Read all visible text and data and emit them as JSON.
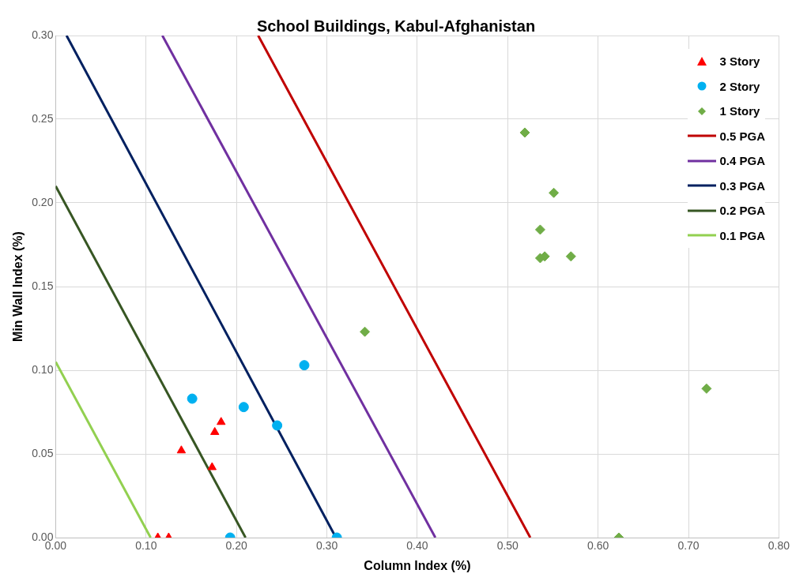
{
  "chart_data": {
    "type": "scatter",
    "title": "School Buildings, Kabul-Afghanistan",
    "xlabel": "Column Index (%)",
    "ylabel": "Min Wall Index (%)",
    "xlim": [
      0,
      0.8
    ],
    "ylim": [
      0,
      0.3
    ],
    "xticks": [
      {
        "value": 0,
        "label": "0.00"
      },
      {
        "value": 0.1,
        "label": "0.10"
      },
      {
        "value": 0.2,
        "label": "0.20"
      },
      {
        "value": 0.3,
        "label": "0.30"
      },
      {
        "value": 0.4,
        "label": "0.40"
      },
      {
        "value": 0.5,
        "label": "0.50"
      },
      {
        "value": 0.6,
        "label": "0.60"
      },
      {
        "value": 0.7,
        "label": "0.70"
      },
      {
        "value": 0.8,
        "label": "0.80"
      }
    ],
    "yticks": [
      {
        "value": 0,
        "label": "0.00"
      },
      {
        "value": 0.05,
        "label": "0.05"
      },
      {
        "value": 0.1,
        "label": "0.10"
      },
      {
        "value": 0.15,
        "label": "0.15"
      },
      {
        "value": 0.2,
        "label": "0.20"
      },
      {
        "value": 0.25,
        "label": "0.25"
      },
      {
        "value": 0.3,
        "label": "0.30"
      }
    ],
    "grid": true,
    "legend": "top right",
    "series": [
      {
        "name": "3 Story",
        "marker": "triangle",
        "color": "#ff0000",
        "x": [
          0.113,
          0.125,
          0.139,
          0.173,
          0.176,
          0.183
        ],
        "values": [
          0,
          0,
          0.052,
          0.042,
          0.063,
          0.069
        ]
      },
      {
        "name": "2 Story",
        "marker": "circle",
        "color": "#00b0f0",
        "x": [
          0.151,
          0.208,
          0.245,
          0.275,
          0.193,
          0.311
        ],
        "values": [
          0.083,
          0.078,
          0.067,
          0.103,
          0,
          0
        ]
      },
      {
        "name": "1 Story",
        "marker": "diamond",
        "color": "#70ad47",
        "x": [
          0.519,
          0.551,
          0.536,
          0.536,
          0.541,
          0.57,
          0.342,
          0.72,
          0.623
        ],
        "values": [
          0.242,
          0.206,
          0.184,
          0.167,
          0.168,
          0.168,
          0.123,
          0.089,
          0
        ]
      },
      {
        "name": "0.5 PGA",
        "type": "line",
        "marker": "none",
        "color": "#c00000",
        "x": [
          0.224,
          0.525
        ],
        "values": [
          0.3,
          0
        ]
      },
      {
        "name": "0.4 PGA",
        "type": "line",
        "marker": "none",
        "color": "#7030a0",
        "x": [
          0.118,
          0.42
        ],
        "values": [
          0.3,
          0
        ]
      },
      {
        "name": "0.3 PGA",
        "type": "line",
        "marker": "none",
        "color": "#002060",
        "x": [
          0.012,
          0.31
        ],
        "values": [
          0.3,
          0
        ]
      },
      {
        "name": "0.2 PGA",
        "type": "line",
        "marker": "none",
        "color": "#375623",
        "x": [
          0,
          0.21
        ],
        "values": [
          0.21,
          0
        ]
      },
      {
        "name": "0.1 PGA",
        "type": "line",
        "marker": "none",
        "color": "#92d050",
        "x": [
          0,
          0.105
        ],
        "values": [
          0.105,
          0
        ]
      }
    ]
  }
}
